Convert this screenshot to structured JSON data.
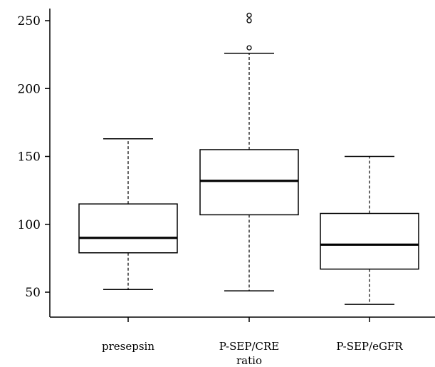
{
  "chart_data": {
    "type": "box",
    "title": "",
    "xlabel": "",
    "ylabel": "",
    "ylim": [
      40,
      262
    ],
    "yticks": [
      50,
      100,
      150,
      200,
      250
    ],
    "grid": false,
    "categories": [
      {
        "lines": [
          "presepsin"
        ]
      },
      {
        "lines": [
          "P-SEP/CRE",
          "ratio"
        ]
      },
      {
        "lines": [
          "P-SEP/eGFR"
        ]
      }
    ],
    "series": [
      {
        "label": "presepsin",
        "whisker_low": 52,
        "q1": 79,
        "median": 90,
        "q3": 115,
        "whisker_high": 163,
        "outliers": []
      },
      {
        "label": "P-SEP/CRE ratio",
        "whisker_low": 51,
        "q1": 107,
        "median": 132,
        "q3": 155,
        "whisker_high": 226,
        "outliers": [
          230,
          250,
          254
        ]
      },
      {
        "label": "P-SEP/eGFR",
        "whisker_low": 41,
        "q1": 67,
        "median": 85,
        "q3": 108,
        "whisker_high": 150,
        "outliers": []
      }
    ]
  }
}
